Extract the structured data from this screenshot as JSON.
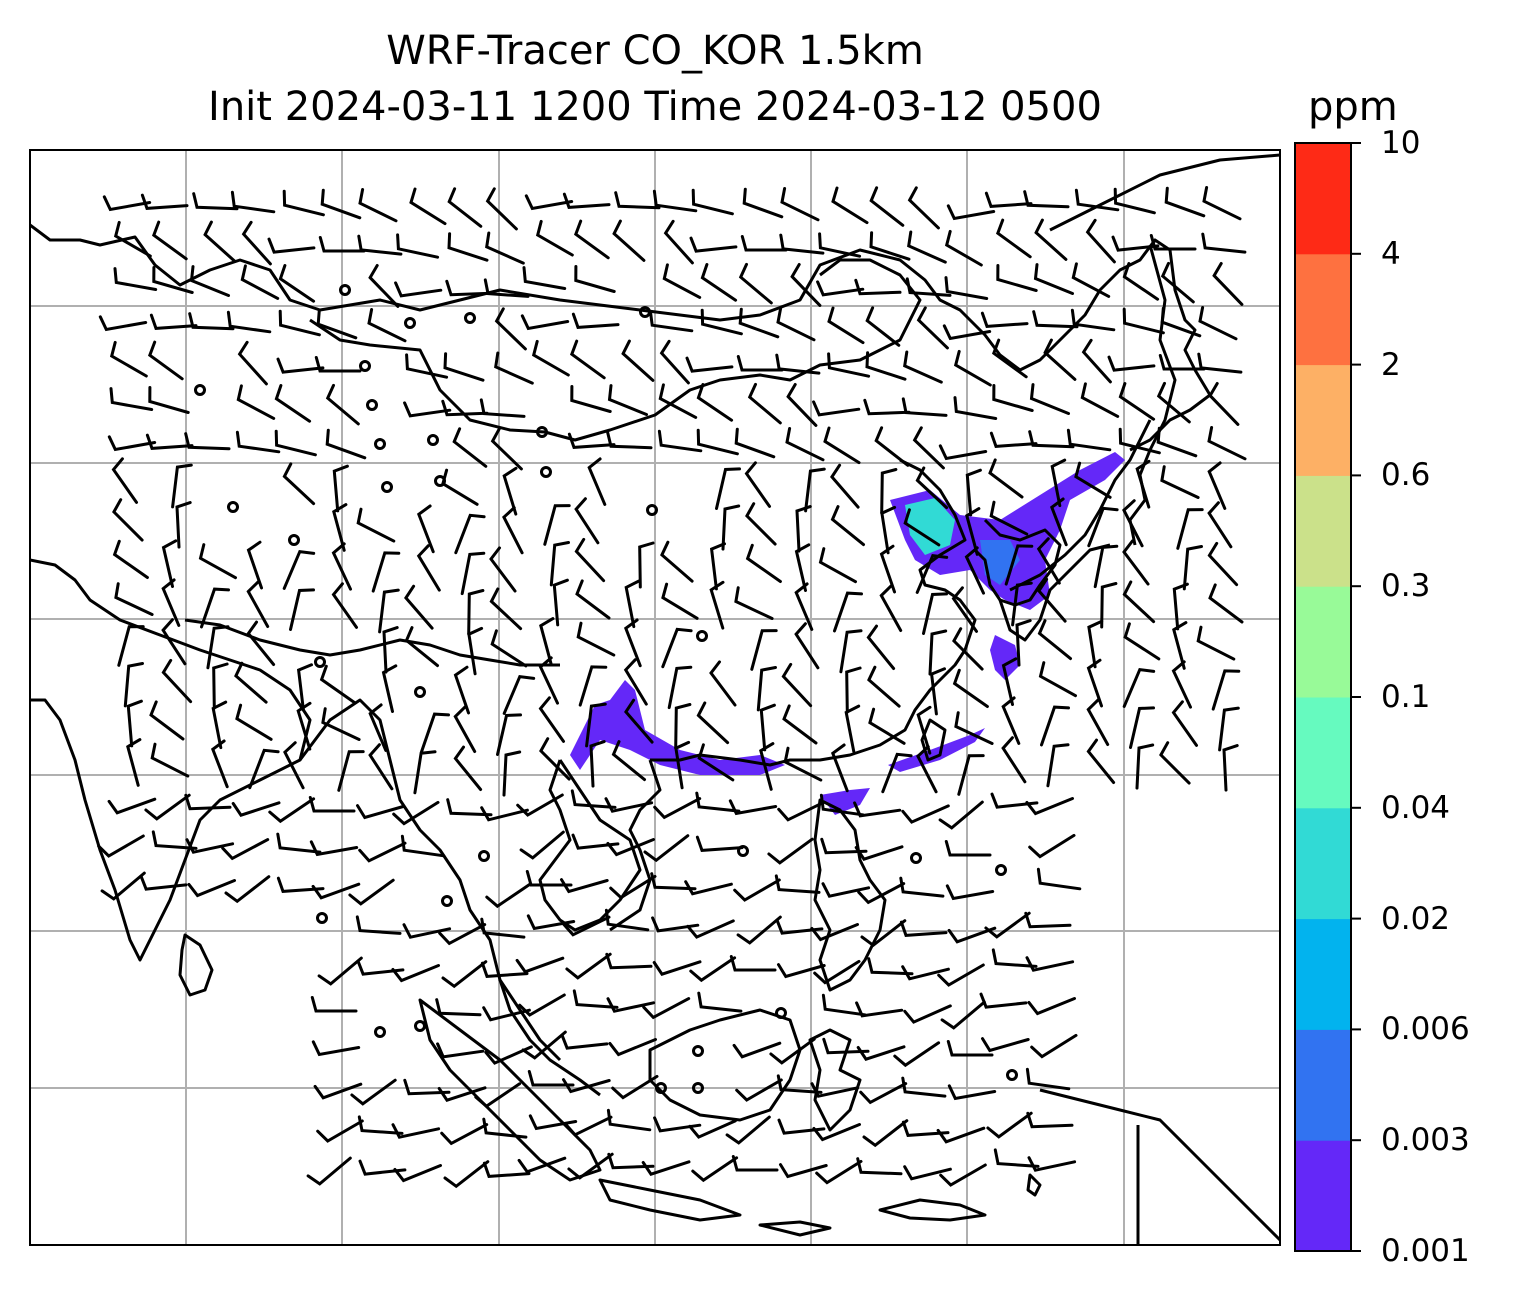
{
  "title": {
    "line1": "WRF-Tracer CO_KOR 1.5km",
    "line2": "Init 2024-03-11 1200 Time 2024-03-12 0500"
  },
  "colorbar": {
    "unit": "ppm",
    "levels": [
      "0.001",
      "0.003",
      "0.006",
      "0.02",
      "0.04",
      "0.1",
      "0.3",
      "0.6",
      "2",
      "4",
      "10"
    ],
    "colors": [
      "#6428f8",
      "#3173f1",
      "#02b3ee",
      "#31dad5",
      "#66fabf",
      "#98fa98",
      "#cbe18a",
      "#fdb065",
      "#fe7140",
      "#fe2a16"
    ]
  },
  "plume_colors": {
    "main": "#6428f8",
    "mid": "#3173f1",
    "high": "#31dad5"
  },
  "map": {
    "gridlines": true,
    "coastlines": true,
    "wind_barbs": true
  }
}
